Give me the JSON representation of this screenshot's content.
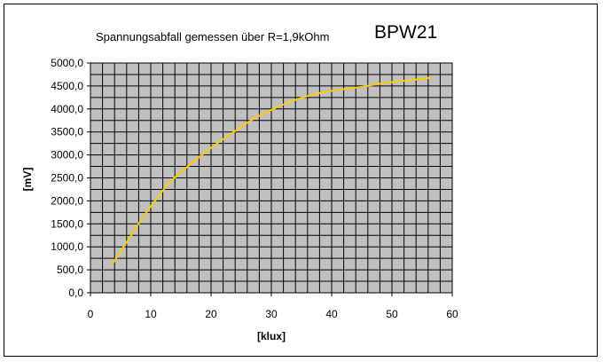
{
  "chart_data": {
    "type": "line",
    "title": "BPW21",
    "subtitle": "Spannungsabfall gemessen über R=1,9kOhm",
    "xlabel": "[klux]",
    "ylabel": "[mV]",
    "xlim": [
      0,
      60
    ],
    "ylim": [
      0,
      5000
    ],
    "x_ticks": [
      "0",
      "10",
      "20",
      "30",
      "40",
      "50",
      "60"
    ],
    "y_ticks": [
      "0,0",
      "500,0",
      "1000,0",
      "1500,0",
      "2000,0",
      "2500,0",
      "3000,0",
      "3500,0",
      "4000,0",
      "4500,0",
      "5000,0"
    ],
    "x_minor_step": 2,
    "y_minor_step": 250,
    "grid": true,
    "plot_background": "#c0c0c0",
    "line_color": "#ffcc00",
    "series": [
      {
        "x": [
          3.5,
          5,
          7,
          9,
          11,
          13,
          15,
          18,
          21,
          24,
          27,
          30,
          33,
          36,
          39,
          42,
          45,
          48,
          51,
          54,
          56.5
        ],
        "y": [
          600,
          900,
          1300,
          1700,
          2050,
          2380,
          2620,
          2950,
          3250,
          3520,
          3780,
          3980,
          4150,
          4280,
          4370,
          4430,
          4480,
          4550,
          4600,
          4640,
          4680
        ]
      }
    ]
  }
}
